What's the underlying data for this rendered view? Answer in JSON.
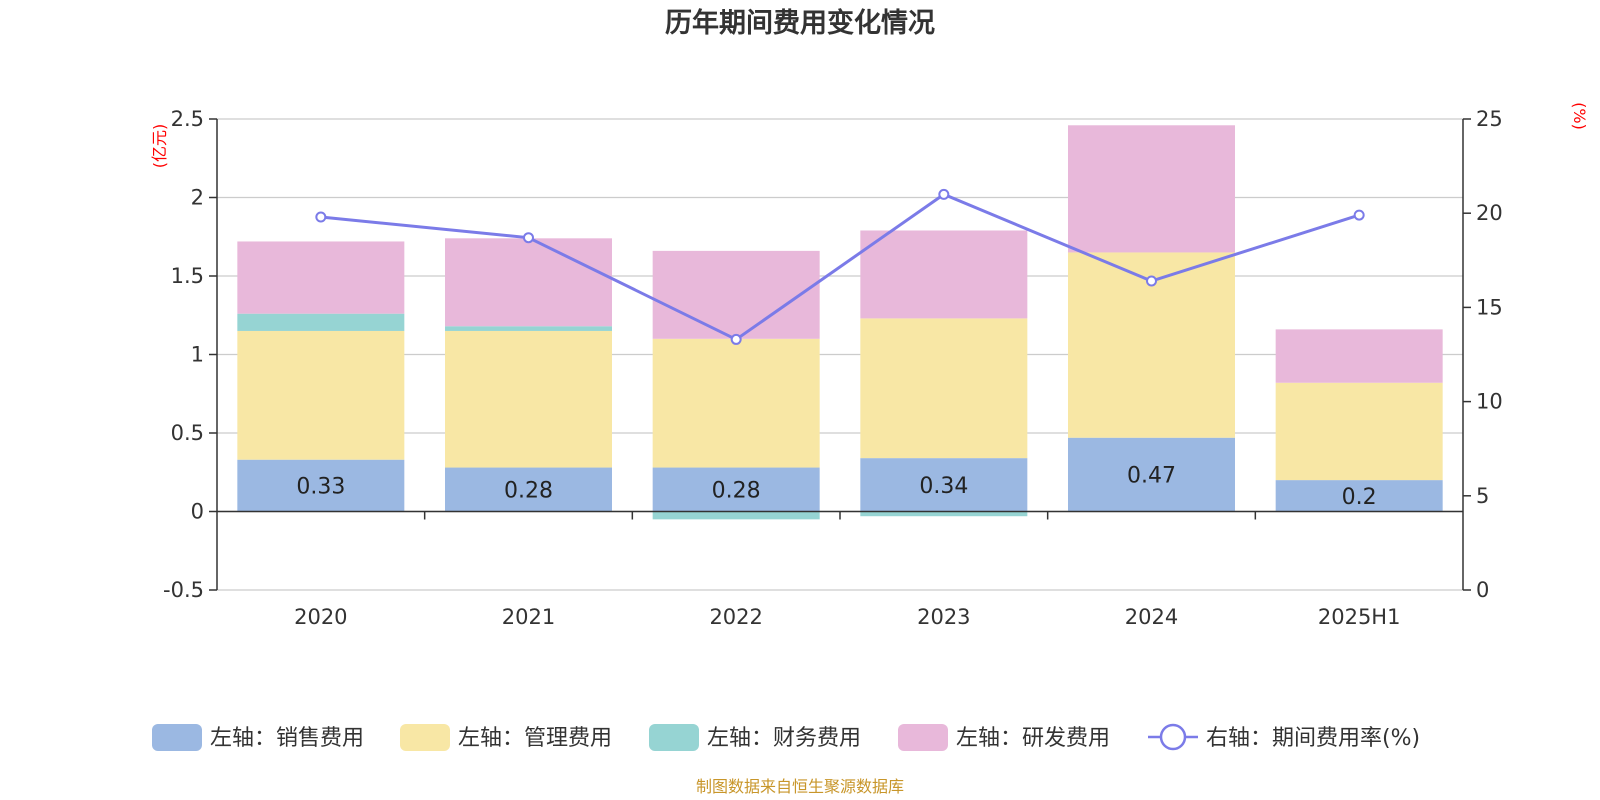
{
  "chart_data": {
    "type": "bar",
    "stacked": true,
    "title": "历年期间费用变化情况",
    "categories": [
      "2020",
      "2021",
      "2022",
      "2023",
      "2024",
      "2025H1"
    ],
    "left_axis": {
      "unit": "(亿元)",
      "ylim": [
        -0.5,
        2.5
      ],
      "ticks": [
        -0.5,
        0,
        0.5,
        1,
        1.5,
        2,
        2.5
      ],
      "tick_labels": [
        "-0.5",
        "0",
        "0.5",
        "1",
        "1.5",
        "2",
        "2.5"
      ]
    },
    "right_axis": {
      "unit": "(%)",
      "ylim": [
        0,
        25
      ],
      "ticks": [
        0,
        5,
        10,
        15,
        20,
        25
      ],
      "tick_labels": [
        "0",
        "5",
        "10",
        "15",
        "20",
        "25"
      ]
    },
    "series": [
      {
        "name": "左轴：销售费用",
        "axis": "left",
        "color": "#9bb8e2",
        "values": [
          0.33,
          0.28,
          0.28,
          0.34,
          0.47,
          0.2
        ],
        "labels": [
          "0.33",
          "0.28",
          "0.28",
          "0.34",
          "0.47",
          "0.2"
        ]
      },
      {
        "name": "左轴：管理费用",
        "axis": "left",
        "color": "#f8e7a5",
        "values": [
          0.82,
          0.87,
          0.82,
          0.89,
          1.18,
          0.62
        ]
      },
      {
        "name": "左轴：财务费用",
        "axis": "left",
        "color": "#96d4d3",
        "values": [
          0.11,
          0.03,
          -0.05,
          -0.03,
          0.0,
          0.0
        ]
      },
      {
        "name": "左轴：研发费用",
        "axis": "left",
        "color": "#e8b8da",
        "values": [
          0.46,
          0.56,
          0.56,
          0.56,
          0.81,
          0.34
        ]
      },
      {
        "name": "右轴：期间费用率(%)",
        "axis": "right",
        "type": "line",
        "color": "#7b7be8",
        "values": [
          19.8,
          18.7,
          13.3,
          21.0,
          16.4,
          19.9
        ]
      }
    ],
    "grid": true,
    "legend_position": "bottom"
  },
  "footer": {
    "source": "制图数据来自恒生聚源数据库"
  }
}
